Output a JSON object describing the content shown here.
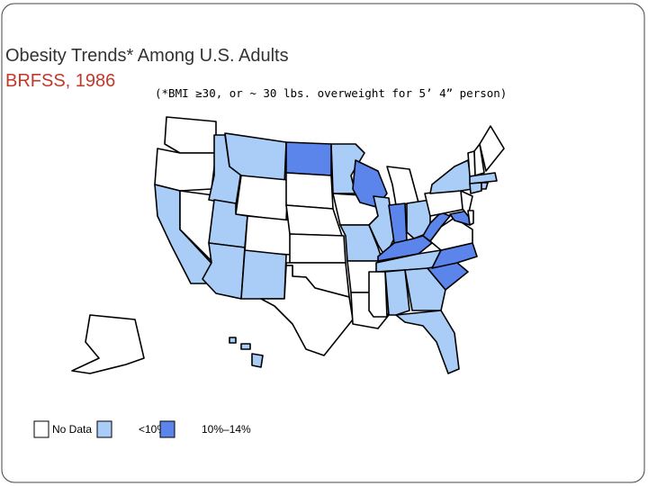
{
  "header": {
    "title": "Obesity Trends* Among U.S. Adults",
    "subtitle": "BRFSS, 1986",
    "note": "(*BMI ≥30, or ~ 30 lbs. overweight for 5’ 4” person)"
  },
  "legend": [
    {
      "label": "No Data",
      "color": "#ffffff"
    },
    {
      "label": "<10%",
      "color": "#a9cdf7"
    },
    {
      "label": "10%–14%",
      "color": "#5b85ea"
    }
  ],
  "map": {
    "region_categories": [
      0,
      0,
      1,
      0,
      1,
      1,
      0,
      1,
      0,
      1,
      1,
      2,
      0,
      0,
      0,
      0,
      0,
      1,
      0,
      1,
      0,
      0,
      2,
      1,
      0,
      2,
      1,
      2,
      1,
      0,
      1,
      1,
      1,
      2,
      2,
      0,
      2,
      0,
      1,
      2,
      0,
      0,
      0,
      0,
      1,
      1,
      1,
      0,
      0,
      1,
      1,
      1
    ]
  }
}
